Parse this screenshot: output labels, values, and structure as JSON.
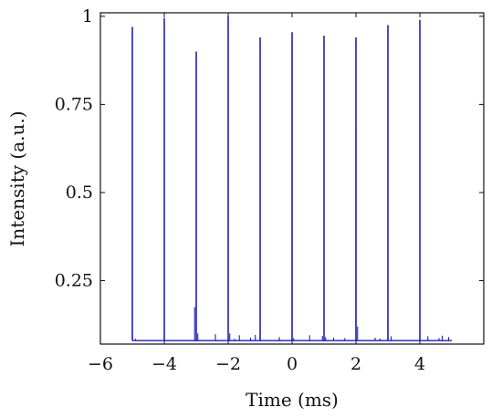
{
  "chart_data": {
    "type": "line",
    "title": "",
    "xlabel": "Time (ms)",
    "ylabel": "Intensity (a.u.)",
    "xlim": [
      -6,
      6
    ],
    "ylim": [
      0.07,
      1.01
    ],
    "xticks": [
      -6,
      -4,
      -2,
      0,
      2,
      4
    ],
    "xtick_labels": [
      "−6",
      "−4",
      "−2",
      "0",
      "2",
      "4"
    ],
    "yticks": [
      0.25,
      0.5,
      0.75,
      1
    ],
    "ytick_labels": [
      "0.25",
      "0.5",
      "0.75",
      "1"
    ],
    "grid": false,
    "baseline": 0.08,
    "x_range": [
      -5,
      5
    ],
    "color": "#1f1fb4",
    "main_peaks": [
      {
        "x": -5,
        "y": 0.97
      },
      {
        "x": -4,
        "y": 0.995
      },
      {
        "x": -3,
        "y": 0.9
      },
      {
        "x": -2,
        "y": 1.0
      },
      {
        "x": -1,
        "y": 0.94
      },
      {
        "x": 0,
        "y": 0.955
      },
      {
        "x": 1,
        "y": 0.945
      },
      {
        "x": 2,
        "y": 0.94
      },
      {
        "x": 3,
        "y": 0.975
      },
      {
        "x": 4,
        "y": 0.99
      }
    ],
    "minor_peaks": [
      {
        "x": -4.9,
        "y": 0.085
      },
      {
        "x": -3.05,
        "y": 0.175
      },
      {
        "x": -2.95,
        "y": 0.1
      },
      {
        "x": -2.4,
        "y": 0.098
      },
      {
        "x": -1.95,
        "y": 0.1
      },
      {
        "x": -1.8,
        "y": 0.085
      },
      {
        "x": -1.65,
        "y": 0.095
      },
      {
        "x": -1.3,
        "y": 0.088
      },
      {
        "x": -1.15,
        "y": 0.096
      },
      {
        "x": -0.4,
        "y": 0.09
      },
      {
        "x": 0.0,
        "y": 0.1
      },
      {
        "x": 0.05,
        "y": 0.087
      },
      {
        "x": 0.55,
        "y": 0.095
      },
      {
        "x": 0.95,
        "y": 0.093
      },
      {
        "x": 1.05,
        "y": 0.09
      },
      {
        "x": 1.3,
        "y": 0.088
      },
      {
        "x": 1.65,
        "y": 0.087
      },
      {
        "x": 2.0,
        "y": 0.68
      },
      {
        "x": 2.05,
        "y": 0.12
      },
      {
        "x": 2.6,
        "y": 0.088
      },
      {
        "x": 2.75,
        "y": 0.086
      },
      {
        "x": 3.0,
        "y": 0.14
      },
      {
        "x": 3.1,
        "y": 0.092
      },
      {
        "x": 4.25,
        "y": 0.092
      },
      {
        "x": 4.6,
        "y": 0.087
      },
      {
        "x": 4.7,
        "y": 0.094
      },
      {
        "x": 4.9,
        "y": 0.09
      }
    ]
  }
}
